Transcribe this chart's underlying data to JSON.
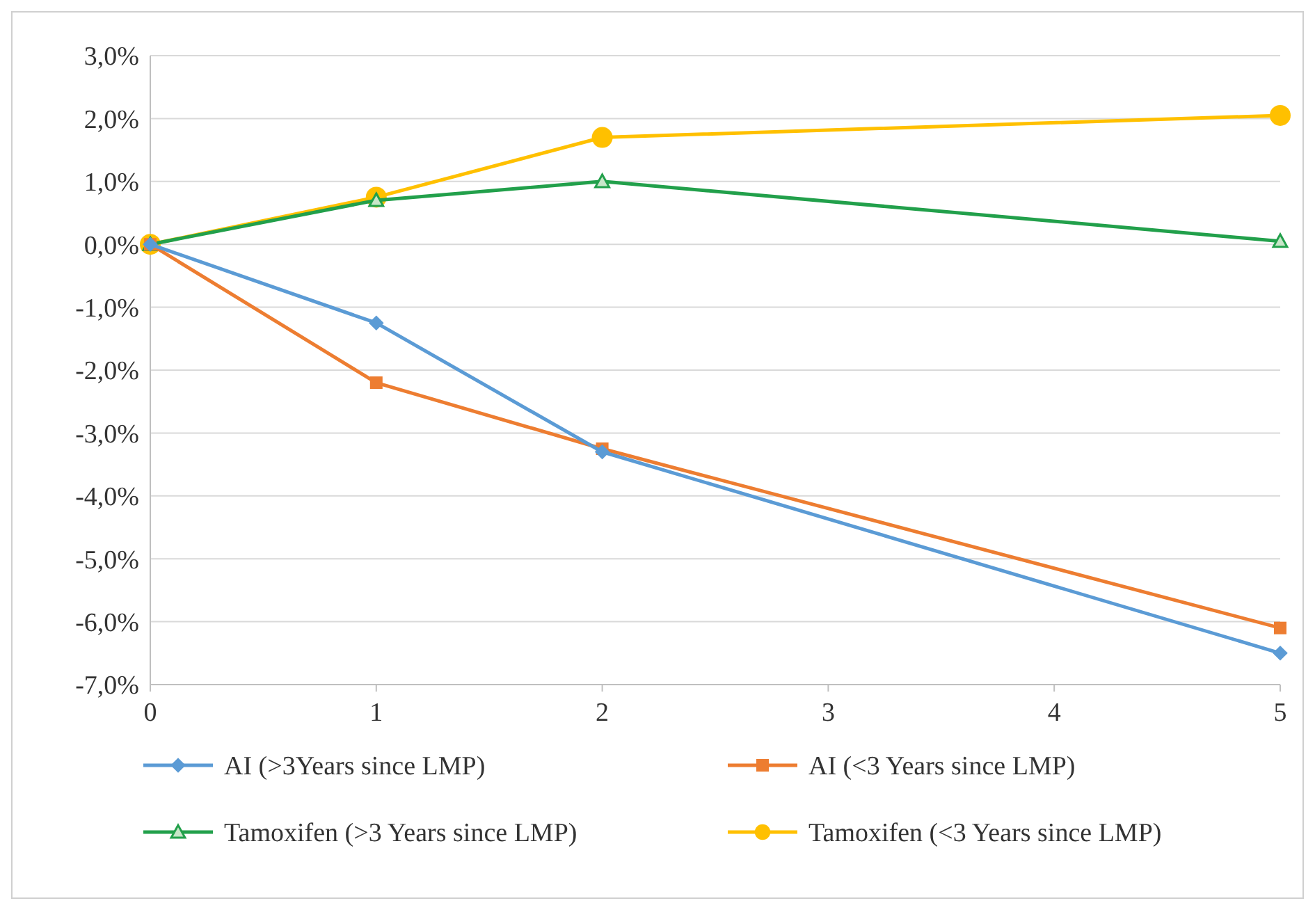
{
  "chart_data": {
    "type": "line",
    "x": [
      0,
      1,
      2,
      5
    ],
    "xlim": [
      0,
      5
    ],
    "xticks": [
      0,
      1,
      2,
      3,
      4,
      5
    ],
    "ylim": [
      -7,
      3
    ],
    "yticks": [
      {
        "value": 3,
        "label": "3,0%"
      },
      {
        "value": 2,
        "label": "2,0%"
      },
      {
        "value": 1,
        "label": "1,0%"
      },
      {
        "value": 0,
        "label": "0,0%"
      },
      {
        "value": -1,
        "label": "-1,0%"
      },
      {
        "value": -2,
        "label": "-2,0%"
      },
      {
        "value": -3,
        "label": "-3,0%"
      },
      {
        "value": -4,
        "label": "-4,0%"
      },
      {
        "value": -5,
        "label": "-5,0%"
      },
      {
        "value": -6,
        "label": "-6,0%"
      },
      {
        "value": -7,
        "label": "-7,0%"
      }
    ],
    "grid": "y",
    "legend": "bottom",
    "line_style": "solid",
    "series": [
      {
        "name": "AI (>3Years since LMP)",
        "color": "#5b9bd5",
        "marker": "diamond",
        "values": [
          0,
          -1.25,
          -3.3,
          -6.5
        ]
      },
      {
        "name": "AI (<3 Years since LMP)",
        "color": "#ed7d31",
        "marker": "square",
        "values": [
          0,
          -2.2,
          -3.25,
          -6.1
        ]
      },
      {
        "name": "Tamoxifen (>3 Years since LMP)",
        "color": "#22a04b",
        "marker": "triangle",
        "values": [
          0,
          0.7,
          1.0,
          0.05
        ]
      },
      {
        "name": "Tamoxifen (<3 Years since LMP)",
        "color": "#ffc000",
        "marker": "circle",
        "values": [
          0,
          0.75,
          1.7,
          2.05
        ]
      }
    ]
  }
}
